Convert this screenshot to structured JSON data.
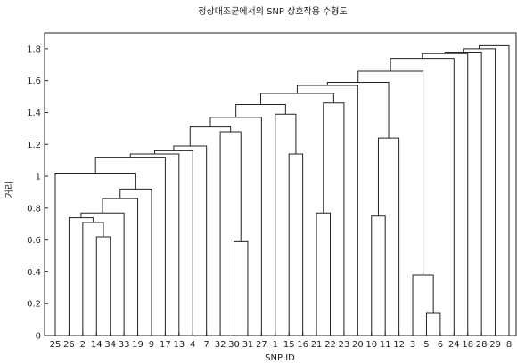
{
  "chart_data": {
    "type": "dendrogram",
    "title": "정상대조군에서의 SNP 상호작용 수형도",
    "xlabel": "SNP ID",
    "ylabel": "거리",
    "ylim": [
      0,
      1.9
    ],
    "yticks": [
      0,
      0.2,
      0.4,
      0.6,
      0.8,
      1,
      1.2,
      1.4,
      1.6,
      1.8
    ],
    "leaves": [
      "25",
      "26",
      "2",
      "14",
      "34",
      "33",
      "19",
      "9",
      "17",
      "13",
      "4",
      "7",
      "32",
      "30",
      "31",
      "27",
      "1",
      "15",
      "16",
      "21",
      "22",
      "23",
      "20",
      "10",
      "11",
      "12",
      "3",
      "5",
      "6",
      "24",
      "18",
      "28",
      "29",
      "8"
    ],
    "links": [
      {
        "a": "L3",
        "b": "L4",
        "h": 0.62
      },
      {
        "a": "L2",
        "b": "C0",
        "h": 0.71
      },
      {
        "a": "L1",
        "b": "C1",
        "h": 0.74
      },
      {
        "a": "C2",
        "b": "L5",
        "h": 0.77
      },
      {
        "a": "C3",
        "b": "L6",
        "h": 0.86
      },
      {
        "a": "C4",
        "b": "L7",
        "h": 0.92
      },
      {
        "a": "L0",
        "b": "C5",
        "h": 1.02
      },
      {
        "a": "C6",
        "b": "L8",
        "h": 1.12
      },
      {
        "a": "C7",
        "b": "L9",
        "h": 1.14
      },
      {
        "a": "C8",
        "b": "L10",
        "h": 1.16
      },
      {
        "a": "C9",
        "b": "L11",
        "h": 1.19
      },
      {
        "a": "L13",
        "b": "L14",
        "h": 0.59
      },
      {
        "a": "L12",
        "b": "C11",
        "h": 1.28
      },
      {
        "a": "C10",
        "b": "C12",
        "h": 1.31
      },
      {
        "a": "C13",
        "b": "L15",
        "h": 1.37
      },
      {
        "a": "L17",
        "b": "L18",
        "h": 1.14
      },
      {
        "a": "L16",
        "b": "C15",
        "h": 1.39
      },
      {
        "a": "C14",
        "b": "C16",
        "h": 1.45
      },
      {
        "a": "L19",
        "b": "L20",
        "h": 0.77
      },
      {
        "a": "C18",
        "b": "L21",
        "h": 1.46
      },
      {
        "a": "C17",
        "b": "C19",
        "h": 1.52
      },
      {
        "a": "C20",
        "b": "L22",
        "h": 1.57
      },
      {
        "a": "L23",
        "b": "L24",
        "h": 0.75
      },
      {
        "a": "C22",
        "b": "L25",
        "h": 1.24
      },
      {
        "a": "C21",
        "b": "C23",
        "h": 1.59
      },
      {
        "a": "L27",
        "b": "L28",
        "h": 0.14
      },
      {
        "a": "L26",
        "b": "C25",
        "h": 0.38
      },
      {
        "a": "C24",
        "b": "C26",
        "h": 1.66
      },
      {
        "a": "C27",
        "b": "L29",
        "h": 1.74
      },
      {
        "a": "C28",
        "b": "L30",
        "h": 1.77
      },
      {
        "a": "C29",
        "b": "L31",
        "h": 1.78
      },
      {
        "a": "C30",
        "b": "L32",
        "h": 1.8
      },
      {
        "a": "C31",
        "b": "L33",
        "h": 1.82
      }
    ]
  }
}
